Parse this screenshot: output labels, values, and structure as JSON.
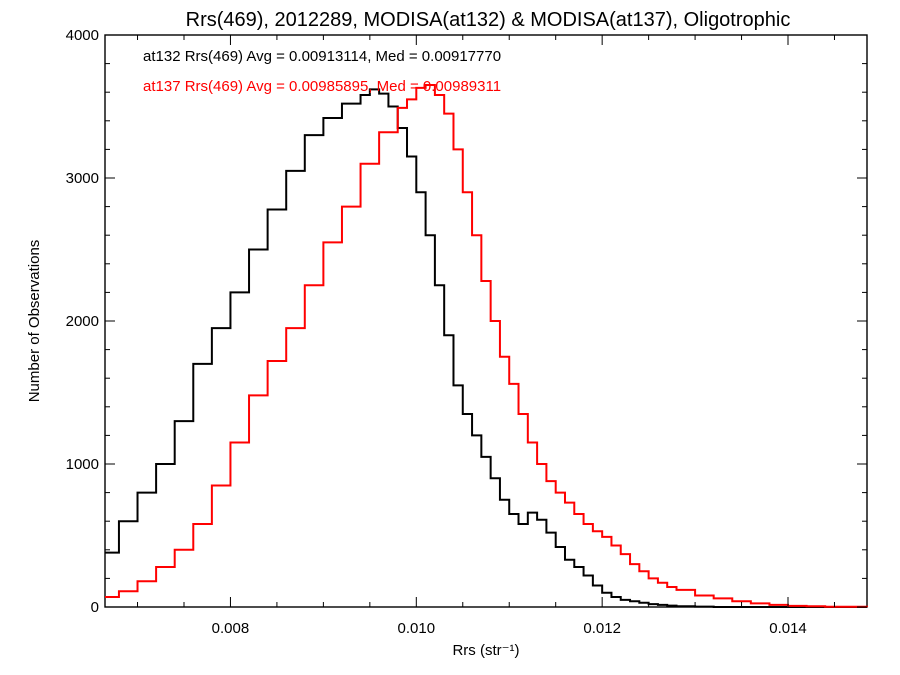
{
  "chart_data": {
    "type": "line",
    "title": "Rrs(469), 2012289, MODISA(at132) & MODISA(at137), Oligotrophic",
    "xlabel": "Rrs (str⁻¹)",
    "ylabel": "Number of Observations",
    "xlim": [
      0.00665,
      0.01485
    ],
    "ylim": [
      0,
      4000
    ],
    "x_ticks": [
      0.008,
      0.01,
      0.012,
      0.014
    ],
    "x_tick_labels": [
      "0.008",
      "0.010",
      "0.012",
      "0.014"
    ],
    "y_ticks": [
      0,
      1000,
      2000,
      3000,
      4000
    ],
    "y_tick_labels": [
      "0",
      "1000",
      "2000",
      "3000",
      "4000"
    ],
    "grid": false,
    "legend_position": "top-left",
    "legend_entries": [
      "at132 Rrs(469) Avg = 0.00913114, Med = 0.00917770",
      "at137 Rrs(469) Avg = 0.00985895, Med = 0.00989311"
    ],
    "series": [
      {
        "name": "at132",
        "color": "#000000",
        "step": true,
        "x": [
          0.00665,
          0.0068,
          0.007,
          0.0072,
          0.0074,
          0.0076,
          0.0078,
          0.008,
          0.0082,
          0.0084,
          0.0086,
          0.0088,
          0.009,
          0.0092,
          0.0094,
          0.0095,
          0.0096,
          0.0097,
          0.0098,
          0.0099,
          0.01,
          0.0101,
          0.0102,
          0.0103,
          0.0104,
          0.0105,
          0.0106,
          0.0107,
          0.0108,
          0.0109,
          0.011,
          0.0111,
          0.0112,
          0.0113,
          0.0114,
          0.0115,
          0.0116,
          0.0117,
          0.0118,
          0.0119,
          0.012,
          0.0121,
          0.0122,
          0.0123,
          0.0124,
          0.0125,
          0.0126,
          0.0127,
          0.0128,
          0.013,
          0.0132,
          0.01485
        ],
        "y": [
          380,
          600,
          800,
          1000,
          1300,
          1700,
          1950,
          2200,
          2500,
          2780,
          3050,
          3300,
          3420,
          3520,
          3580,
          3620,
          3590,
          3500,
          3350,
          3150,
          2900,
          2600,
          2250,
          1900,
          1550,
          1350,
          1200,
          1050,
          900,
          750,
          650,
          580,
          660,
          610,
          520,
          420,
          330,
          280,
          220,
          150,
          100,
          70,
          50,
          40,
          30,
          20,
          15,
          10,
          5,
          3,
          0,
          0
        ]
      },
      {
        "name": "at137",
        "color": "#ff0000",
        "step": true,
        "x": [
          0.00665,
          0.0068,
          0.007,
          0.0072,
          0.0074,
          0.0076,
          0.0078,
          0.008,
          0.0082,
          0.0084,
          0.0086,
          0.0088,
          0.009,
          0.0092,
          0.0094,
          0.0096,
          0.0098,
          0.0099,
          0.01,
          0.0101,
          0.0102,
          0.0103,
          0.0104,
          0.0105,
          0.0106,
          0.0107,
          0.0108,
          0.0109,
          0.011,
          0.0111,
          0.0112,
          0.0113,
          0.0114,
          0.0115,
          0.0116,
          0.0117,
          0.0118,
          0.0119,
          0.012,
          0.0121,
          0.0122,
          0.0123,
          0.0124,
          0.0125,
          0.0126,
          0.0127,
          0.0128,
          0.013,
          0.0132,
          0.0134,
          0.0136,
          0.0138,
          0.014,
          0.0142,
          0.0144,
          0.01485
        ],
        "y": [
          70,
          110,
          180,
          280,
          400,
          580,
          850,
          1150,
          1480,
          1720,
          1950,
          2250,
          2550,
          2800,
          3100,
          3320,
          3490,
          3550,
          3630,
          3650,
          3580,
          3450,
          3200,
          2900,
          2600,
          2280,
          2000,
          1750,
          1560,
          1350,
          1150,
          1000,
          880,
          800,
          730,
          650,
          580,
          530,
          490,
          430,
          370,
          300,
          250,
          200,
          170,
          140,
          120,
          80,
          60,
          40,
          25,
          15,
          8,
          5,
          2,
          0
        ]
      }
    ]
  }
}
